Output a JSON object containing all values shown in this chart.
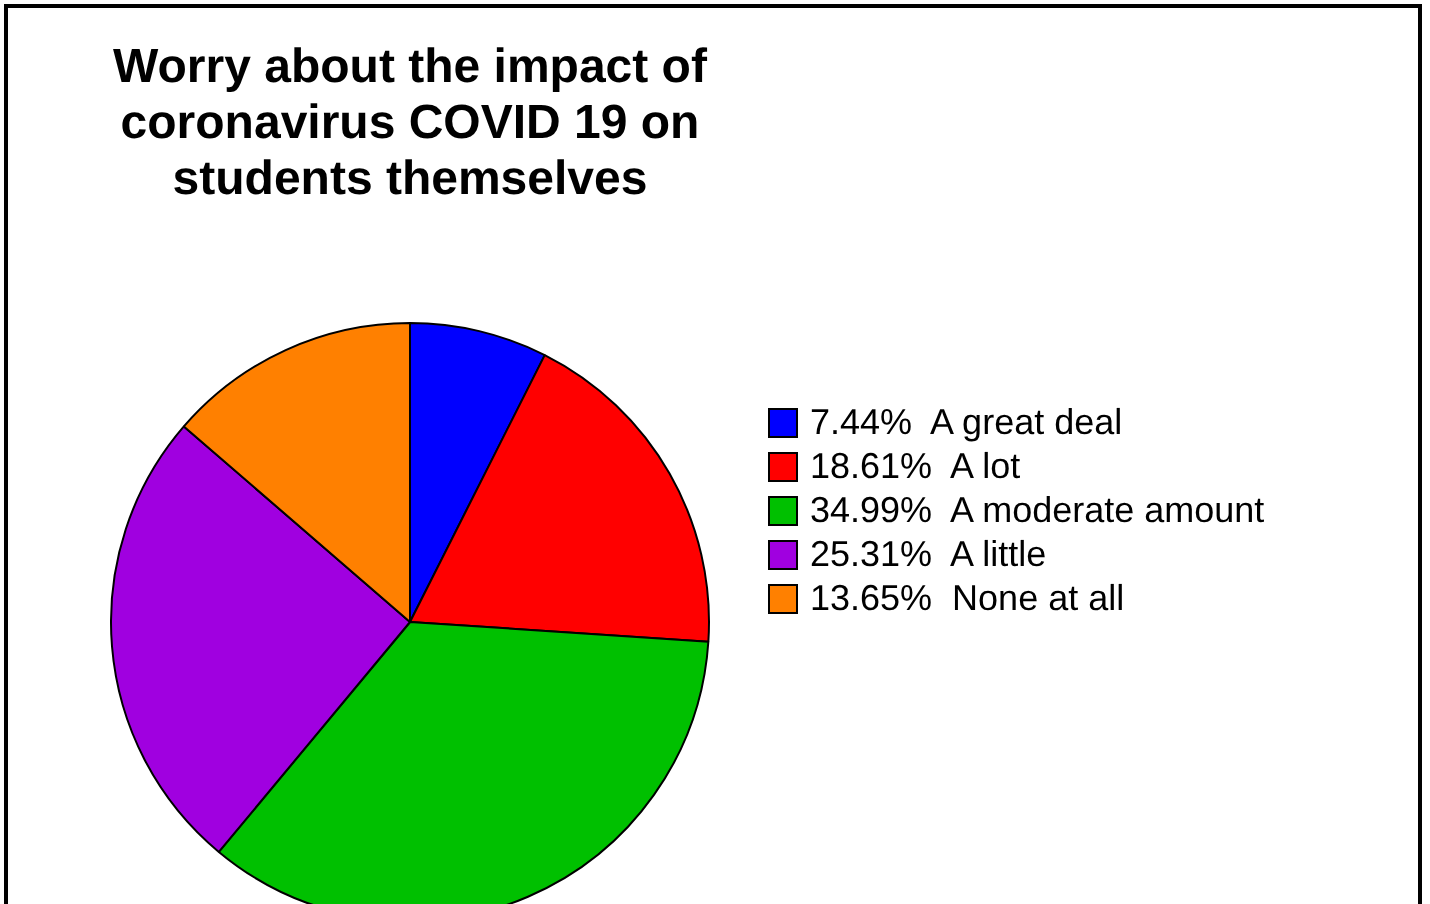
{
  "chart_data": {
    "type": "pie",
    "title": "Worry about the impact of coronavirus COVID 19 on students themselves",
    "categories": [
      "A great deal",
      "A lot",
      "A moderate amount",
      "A little",
      "None at all"
    ],
    "values": [
      7.44,
      18.61,
      34.99,
      25.31,
      13.65
    ],
    "value_labels": [
      "7.44%",
      "18.61%",
      "34.99%",
      "25.31%",
      "13.65%"
    ],
    "colors": [
      "#0000ff",
      "#ff0000",
      "#00c000",
      "#a000e0",
      "#ff8000"
    ],
    "legend": "right"
  }
}
